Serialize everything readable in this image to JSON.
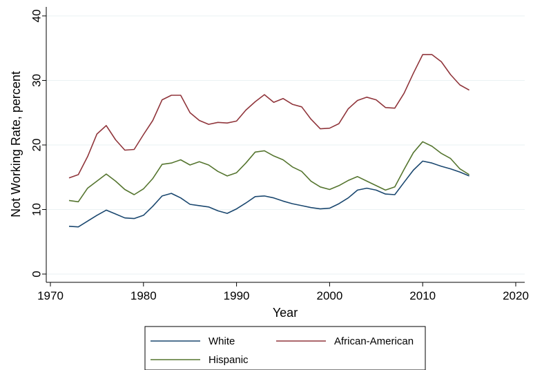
{
  "chart_data": {
    "type": "line",
    "title": "",
    "xlabel": "Year",
    "ylabel": "Not Working Rate, percent",
    "xlim": [
      1968,
      2021
    ],
    "ylim": [
      0,
      40
    ],
    "xticks": [
      "1970",
      "1980",
      "1990",
      "2000",
      "2010",
      "2020"
    ],
    "yticks": [
      "0",
      "10",
      "20",
      "30",
      "40"
    ],
    "grid": true,
    "legend_position": "bottom",
    "x": [
      1972,
      1973,
      1974,
      1975,
      1976,
      1977,
      1978,
      1979,
      1980,
      1981,
      1982,
      1983,
      1984,
      1985,
      1986,
      1987,
      1988,
      1989,
      1990,
      1991,
      1992,
      1993,
      1994,
      1995,
      1996,
      1997,
      1998,
      1999,
      2000,
      2001,
      2002,
      2003,
      2004,
      2005,
      2006,
      2007,
      2008,
      2009,
      2010,
      2011,
      2012,
      2013,
      2014,
      2015
    ],
    "series": [
      {
        "name": "White",
        "color": "#1a476f",
        "values": [
          7.4,
          7.3,
          8.2,
          9.1,
          9.9,
          9.3,
          8.7,
          8.6,
          9.1,
          10.5,
          12.1,
          12.5,
          11.8,
          10.8,
          10.6,
          10.4,
          9.8,
          9.4,
          10.1,
          11.0,
          12.0,
          12.1,
          11.8,
          11.3,
          10.9,
          10.6,
          10.3,
          10.1,
          10.2,
          10.9,
          11.8,
          13.0,
          13.3,
          13.0,
          12.4,
          12.3,
          14.2,
          16.1,
          17.5,
          17.2,
          16.7,
          16.3,
          15.8,
          15.2
        ]
      },
      {
        "name": "African-American",
        "color": "#90353b",
        "values": [
          14.9,
          15.4,
          18.2,
          21.7,
          23.0,
          20.8,
          19.2,
          19.3,
          21.6,
          23.8,
          27.0,
          27.7,
          27.7,
          25.0,
          23.8,
          23.2,
          23.5,
          23.4,
          23.7,
          25.4,
          26.7,
          27.8,
          26.6,
          27.2,
          26.3,
          25.9,
          24.0,
          22.5,
          22.6,
          23.3,
          25.6,
          26.9,
          27.4,
          27.0,
          25.8,
          25.7,
          28.0,
          31.1,
          34.0,
          34.0,
          32.9,
          30.9,
          29.3,
          28.5
        ]
      },
      {
        "name": "Hispanic",
        "color": "#55752f",
        "values": [
          11.4,
          11.2,
          13.3,
          14.4,
          15.5,
          14.4,
          13.1,
          12.3,
          13.2,
          14.8,
          17.0,
          17.2,
          17.7,
          16.9,
          17.4,
          16.9,
          15.9,
          15.2,
          15.7,
          17.2,
          18.9,
          19.1,
          18.3,
          17.7,
          16.6,
          15.9,
          14.4,
          13.5,
          13.1,
          13.7,
          14.5,
          15.1,
          14.4,
          13.7,
          13.0,
          13.5,
          16.2,
          18.8,
          20.5,
          19.8,
          18.7,
          17.9,
          16.3,
          15.4
        ]
      }
    ]
  }
}
